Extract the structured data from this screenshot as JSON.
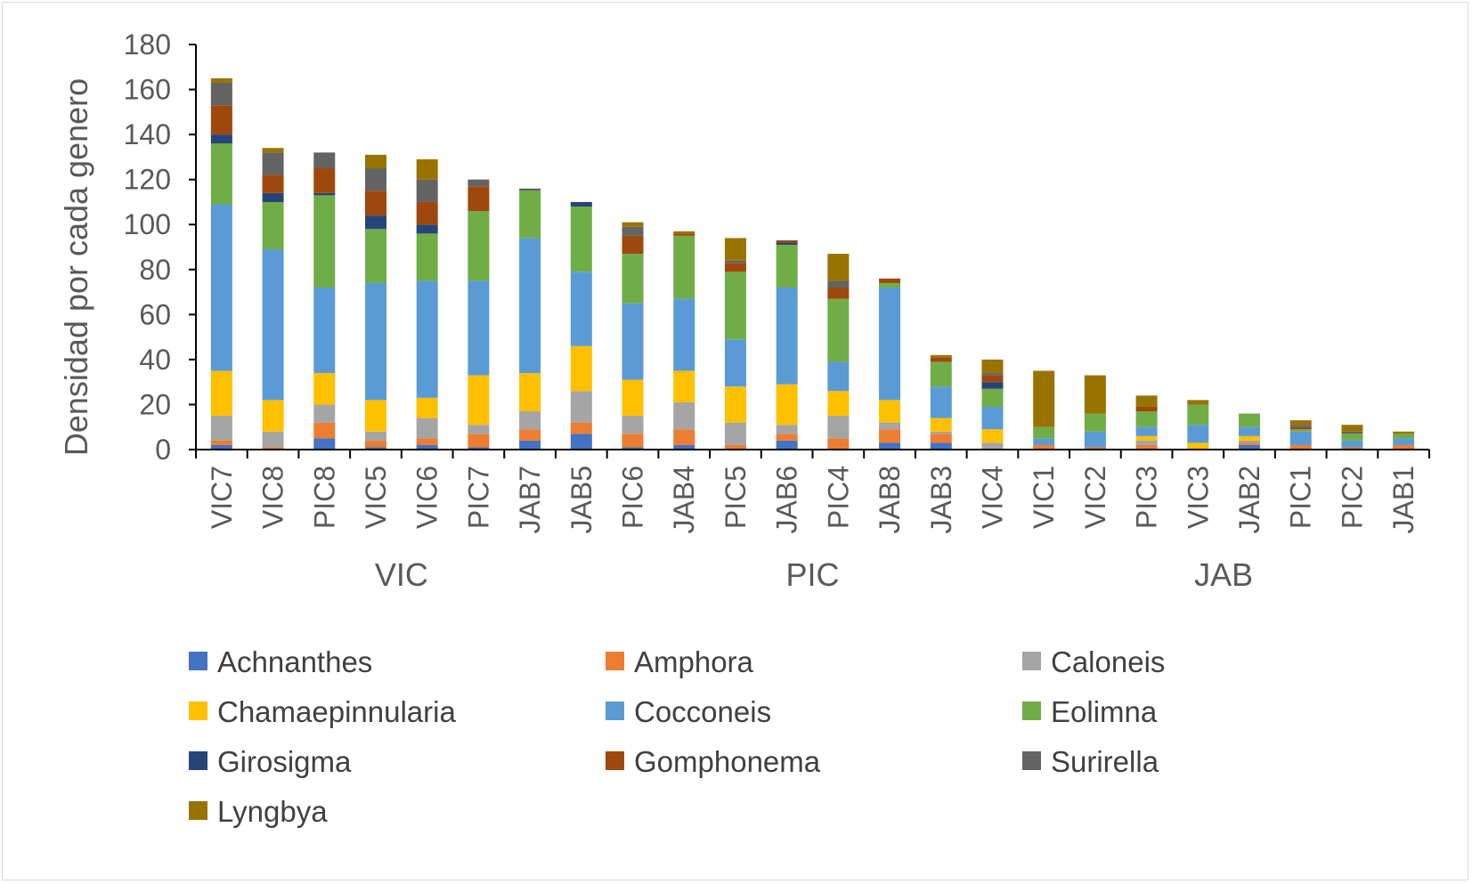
{
  "chart_data": {
    "type": "bar",
    "stacked": true,
    "title": "",
    "xlabel": "",
    "ylabel": "Densidad por cada genero",
    "ylim": [
      0,
      180
    ],
    "yticks": [
      0,
      20,
      40,
      60,
      80,
      100,
      120,
      140,
      160,
      180
    ],
    "grid": false,
    "legend_position": "bottom",
    "categories": [
      "VIC7",
      "VIC8",
      "PIC8",
      "VIC5",
      "VIC6",
      "PIC7",
      "JAB7",
      "JAB5",
      "PIC6",
      "JAB4",
      "PIC5",
      "JAB6",
      "PIC4",
      "JAB8",
      "JAB3",
      "VIC4",
      "VIC1",
      "VIC2",
      "PIC3",
      "VIC3",
      "JAB2",
      "PIC1",
      "PIC2",
      "JAB1"
    ],
    "groups": [
      {
        "label": "VIC",
        "start": 0,
        "end": 7
      },
      {
        "label": "PIC",
        "start": 8,
        "end": 15
      },
      {
        "label": "JAB",
        "start": 16,
        "end": 23
      }
    ],
    "series": [
      {
        "name": "Achnanthes",
        "color": "#4472C4",
        "values": [
          2,
          0,
          5,
          1,
          2,
          1,
          4,
          7,
          1,
          2,
          0,
          4,
          0,
          3,
          3,
          0,
          0,
          0,
          0,
          0,
          2,
          0,
          0,
          0
        ]
      },
      {
        "name": "Amphora",
        "color": "#ED7D31",
        "values": [
          2,
          1,
          7,
          3,
          3,
          6,
          5,
          5,
          6,
          7,
          2,
          3,
          5,
          6,
          4,
          0,
          2,
          1,
          2,
          0,
          1,
          2,
          1,
          2
        ]
      },
      {
        "name": "Caloneis",
        "color": "#A5A5A5",
        "values": [
          11,
          7,
          8,
          4,
          9,
          4,
          8,
          14,
          8,
          12,
          10,
          4,
          10,
          3,
          1,
          3,
          0,
          0,
          2,
          0,
          1,
          0,
          0,
          0
        ]
      },
      {
        "name": "Chamaepinnularia",
        "color": "#FFC000",
        "values": [
          20,
          14,
          14,
          14,
          9,
          22,
          17,
          20,
          16,
          14,
          16,
          18,
          11,
          10,
          6,
          6,
          0,
          0,
          2,
          3,
          2,
          0,
          0,
          0
        ]
      },
      {
        "name": "Cocconeis",
        "color": "#5B9BD5",
        "values": [
          74,
          67,
          38,
          52,
          52,
          42,
          60,
          33,
          34,
          32,
          21,
          43,
          13,
          50,
          14,
          10,
          3,
          7,
          4,
          8,
          4,
          6,
          3,
          3
        ]
      },
      {
        "name": "Eolimna",
        "color": "#70AD47",
        "values": [
          27,
          21,
          41,
          24,
          21,
          31,
          21,
          29,
          22,
          28,
          30,
          19,
          28,
          2,
          11,
          8,
          5,
          8,
          7,
          9,
          6,
          1,
          3,
          2
        ]
      },
      {
        "name": "Girosigma",
        "color": "#264478",
        "values": [
          4,
          4,
          1,
          6,
          4,
          0,
          0,
          2,
          0,
          0,
          0,
          1,
          0,
          0,
          0,
          3,
          0,
          0,
          0,
          0,
          0,
          0,
          0,
          0
        ]
      },
      {
        "name": "Gomphonema",
        "color": "#9E480E",
        "values": [
          13,
          8,
          11,
          11,
          10,
          11,
          0,
          0,
          8,
          1,
          4,
          1,
          5,
          2,
          2,
          3,
          0,
          0,
          2,
          0,
          0,
          1,
          0,
          0
        ]
      },
      {
        "name": "Surirella",
        "color": "#636363",
        "values": [
          10,
          10,
          7,
          10,
          10,
          3,
          1,
          0,
          4,
          0,
          1,
          0,
          3,
          0,
          0,
          1,
          0,
          0,
          0,
          0,
          0,
          1,
          1,
          0
        ]
      },
      {
        "name": "Lyngbya",
        "color": "#997300",
        "values": [
          2,
          2,
          0,
          6,
          9,
          0,
          0,
          0,
          2,
          1,
          10,
          0,
          12,
          0,
          1,
          6,
          25,
          17,
          5,
          2,
          0,
          2,
          3,
          1
        ]
      }
    ]
  }
}
